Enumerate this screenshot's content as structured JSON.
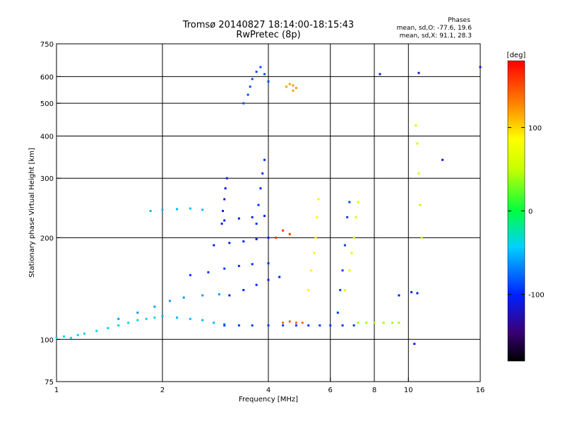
{
  "chart_data": {
    "type": "scatter",
    "title": "Tromsø 20140827 18:14:00-18:15:43",
    "subtitle": "RwPretec (8p)",
    "phases_block": {
      "heading": "Phases",
      "line1": "mean, sd,O: -77.6, 19.6",
      "line2": "mean, sd,X:  91.1, 28.3"
    },
    "xlabel": "Frequency [MHz]",
    "ylabel": "Stationary phase Virtual Height [km]",
    "x_scale": "log",
    "y_scale": "log",
    "xlim": [
      1,
      16
    ],
    "ylim": [
      75,
      750
    ],
    "x_ticks": [
      1,
      2,
      4,
      6,
      8,
      10,
      16
    ],
    "x_tick_labels": [
      "1",
      "2",
      "4",
      "6",
      "8",
      "10",
      "16"
    ],
    "y_ticks": [
      75,
      100,
      200,
      300,
      400,
      500,
      600,
      750
    ],
    "y_tick_labels": [
      "75",
      "100",
      "200",
      "300",
      "400",
      "500",
      "600",
      "750"
    ],
    "grid": true,
    "colorbar": {
      "label": "[deg]",
      "range": [
        -180,
        180
      ],
      "ticks": [
        100,
        0,
        -100
      ],
      "tick_labels": [
        "100",
        "0",
        "-100"
      ]
    },
    "traces": [
      {
        "phase": -40,
        "points": [
          [
            1.0,
            101
          ],
          [
            1.05,
            102
          ],
          [
            1.1,
            101
          ],
          [
            1.15,
            103
          ],
          [
            1.2,
            104
          ],
          [
            1.3,
            106
          ],
          [
            1.4,
            108
          ],
          [
            1.5,
            110
          ],
          [
            1.6,
            112
          ],
          [
            1.7,
            114
          ],
          [
            1.8,
            115
          ],
          [
            1.9,
            116
          ],
          [
            2.0,
            117
          ]
        ]
      },
      {
        "phase": -50,
        "points": [
          [
            2.0,
            117
          ],
          [
            2.2,
            116
          ],
          [
            2.4,
            115
          ],
          [
            2.6,
            114
          ],
          [
            2.8,
            112
          ],
          [
            3.0,
            111
          ]
        ]
      },
      {
        "phase": -60,
        "points": [
          [
            1.5,
            115
          ],
          [
            1.7,
            120
          ],
          [
            1.9,
            125
          ],
          [
            2.1,
            130
          ],
          [
            2.3,
            133
          ],
          [
            2.6,
            135
          ],
          [
            2.9,
            136
          ]
        ]
      },
      {
        "phase": -50,
        "points": [
          [
            1.85,
            240
          ],
          [
            2.0,
            242
          ],
          [
            2.2,
            243
          ],
          [
            2.4,
            244
          ],
          [
            2.6,
            242
          ]
        ]
      },
      {
        "phase": -90,
        "points": [
          [
            3.0,
            110
          ],
          [
            3.3,
            110
          ],
          [
            3.6,
            110
          ],
          [
            4.0,
            110
          ],
          [
            4.4,
            110
          ],
          [
            4.8,
            110
          ],
          [
            5.2,
            110
          ],
          [
            5.6,
            110
          ],
          [
            6.0,
            110
          ],
          [
            6.5,
            110
          ],
          [
            7.0,
            110
          ]
        ]
      },
      {
        "phase": -95,
        "points": [
          [
            2.4,
            155
          ],
          [
            2.7,
            158
          ],
          [
            3.0,
            162
          ],
          [
            3.3,
            165
          ],
          [
            3.6,
            167
          ],
          [
            4.0,
            168
          ]
        ]
      },
      {
        "phase": -100,
        "points": [
          [
            2.8,
            190
          ],
          [
            3.1,
            193
          ],
          [
            3.4,
            195
          ],
          [
            3.7,
            198
          ],
          [
            4.0,
            200
          ]
        ]
      },
      {
        "phase": -100,
        "points": [
          [
            3.0,
            225
          ],
          [
            3.3,
            228
          ],
          [
            3.6,
            230
          ],
          [
            3.9,
            232
          ]
        ]
      },
      {
        "phase": -105,
        "points": [
          [
            2.95,
            220
          ],
          [
            2.97,
            240
          ],
          [
            3.0,
            260
          ],
          [
            3.02,
            280
          ],
          [
            3.05,
            300
          ]
        ]
      },
      {
        "phase": -95,
        "points": [
          [
            3.7,
            220
          ],
          [
            3.75,
            250
          ],
          [
            3.8,
            280
          ],
          [
            3.85,
            310
          ],
          [
            3.9,
            340
          ]
        ]
      },
      {
        "phase": -100,
        "points": [
          [
            3.1,
            135
          ],
          [
            3.4,
            140
          ],
          [
            3.7,
            145
          ],
          [
            4.0,
            150
          ],
          [
            4.3,
            153
          ]
        ]
      },
      {
        "phase": -85,
        "points": [
          [
            3.4,
            500
          ],
          [
            3.5,
            530
          ],
          [
            3.55,
            560
          ],
          [
            3.6,
            590
          ],
          [
            3.7,
            620
          ],
          [
            3.8,
            640
          ],
          [
            3.9,
            610
          ],
          [
            4.0,
            580
          ]
        ]
      },
      {
        "phase": 120,
        "points": [
          [
            4.5,
            560
          ],
          [
            4.6,
            570
          ],
          [
            4.7,
            565
          ],
          [
            4.8,
            555
          ],
          [
            4.7,
            545
          ]
        ]
      },
      {
        "phase": 140,
        "points": [
          [
            4.4,
            112
          ],
          [
            4.6,
            113
          ],
          [
            4.8,
            112
          ],
          [
            5.0,
            112
          ]
        ]
      },
      {
        "phase": 60,
        "points": [
          [
            6.6,
            140
          ],
          [
            6.8,
            160
          ],
          [
            6.9,
            180
          ],
          [
            7.0,
            200
          ],
          [
            7.1,
            230
          ],
          [
            7.2,
            255
          ]
        ]
      },
      {
        "phase": 40,
        "points": [
          [
            7.2,
            112
          ],
          [
            7.6,
            112
          ],
          [
            8.0,
            112
          ],
          [
            8.5,
            112
          ],
          [
            9.0,
            112
          ],
          [
            9.4,
            112
          ]
        ]
      },
      {
        "phase": 90,
        "points": [
          [
            5.2,
            140
          ],
          [
            5.3,
            160
          ],
          [
            5.4,
            180
          ],
          [
            5.45,
            200
          ],
          [
            5.5,
            230
          ],
          [
            5.55,
            260
          ]
        ]
      },
      {
        "phase": -90,
        "points": [
          [
            6.3,
            120
          ],
          [
            6.4,
            140
          ],
          [
            6.5,
            160
          ],
          [
            6.6,
            190
          ],
          [
            6.7,
            230
          ],
          [
            6.8,
            255
          ]
        ]
      },
      {
        "phase": 160,
        "points": [
          [
            4.2,
            200
          ],
          [
            4.4,
            210
          ],
          [
            4.6,
            205
          ]
        ]
      },
      {
        "phase": -110,
        "points": [
          [
            8.3,
            610
          ],
          [
            10.7,
            615
          ],
          [
            12.5,
            340
          ],
          [
            16,
            640
          ]
        ]
      },
      {
        "phase": 50,
        "points": [
          [
            10.5,
            430
          ],
          [
            10.6,
            380
          ],
          [
            10.7,
            310
          ],
          [
            10.8,
            250
          ],
          [
            10.9,
            200
          ]
        ]
      },
      {
        "phase": -100,
        "points": [
          [
            9.4,
            135
          ],
          [
            10.2,
            138
          ],
          [
            10.6,
            137
          ],
          [
            10.4,
            97
          ]
        ]
      }
    ]
  }
}
